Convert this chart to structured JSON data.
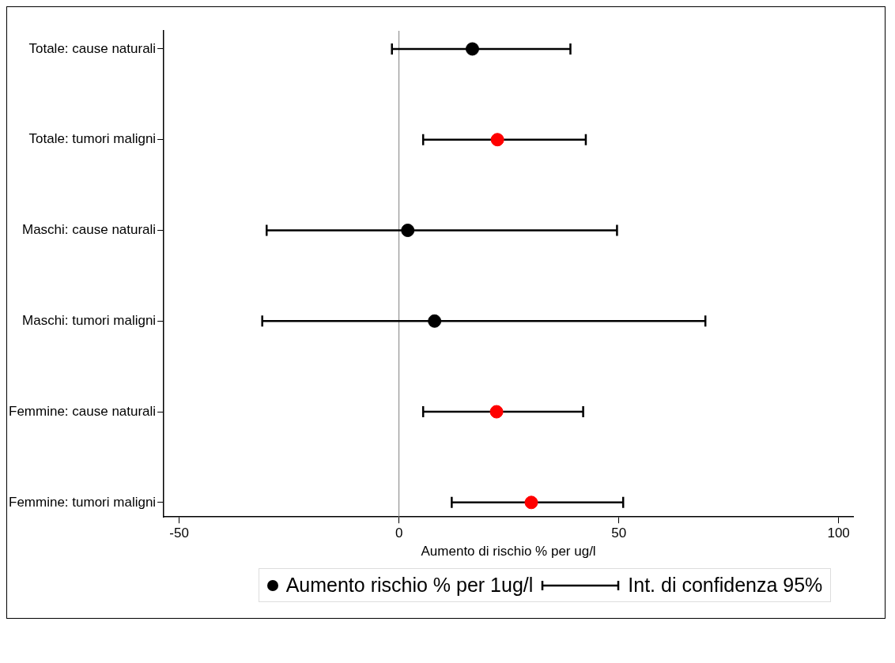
{
  "chart_data": {
    "type": "scatter",
    "xlabel": "Aumento di rischio % per ug/l",
    "categories": [
      "Totale: cause naturali",
      "Totale: tumori maligni",
      "Maschi: cause naturali",
      "Maschi: tumori maligni",
      "Femmine: cause naturali",
      "Femmine: tumori maligni"
    ],
    "series": [
      {
        "name": "Aumento rischio % per 1ug/l",
        "color": "#000000",
        "colors": [
          "#000000",
          "#ff0000",
          "#000000",
          "#000000",
          "#ff0000",
          "#ff0000"
        ],
        "values": [
          16.7,
          22.4,
          2,
          8.1,
          22.2,
          30.1
        ],
        "errors": [
          [
            -1.6,
            39
          ],
          [
            5.5,
            42.5
          ],
          [
            -30.1,
            49.6
          ],
          [
            -31.1,
            69.7
          ],
          [
            5.5,
            41.9
          ],
          [
            12,
            51
          ]
        ]
      }
    ],
    "annotations": [
      "Int. di confidenza 95%"
    ],
    "xlim": [
      -53.5,
      103.3
    ],
    "xticks": [
      -50,
      0,
      50,
      100
    ],
    "ref_lines": [
      {
        "axis": "x",
        "value": 0,
        "color": "#808080"
      }
    ],
    "grid": false,
    "legend": "bottom",
    "marker": "circle",
    "orientation": "horizontal"
  }
}
